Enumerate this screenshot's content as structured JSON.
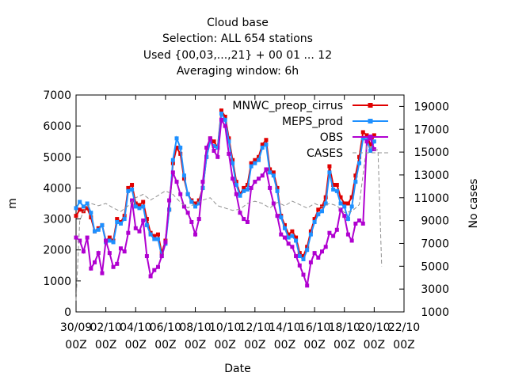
{
  "chart_data": {
    "type": "line",
    "title_lines": [
      "Cloud base",
      "Selection: ALL    654 stations",
      "Used {00,03,...,21} + 00 01 ... 12",
      "Averaging window:  6h"
    ],
    "xlabel": "Date",
    "ylabel": "m",
    "y2label": "No cases",
    "xlim": [
      0,
      22
    ],
    "ylim": [
      0,
      7000
    ],
    "y2lim": [
      1000,
      20000
    ],
    "x_ticks": [
      0,
      2,
      4,
      6,
      8,
      10,
      12,
      14,
      16,
      18,
      20,
      22
    ],
    "x_tick_labels": [
      [
        "30/09",
        "00Z"
      ],
      [
        "02/10",
        "00Z"
      ],
      [
        "04/10",
        "00Z"
      ],
      [
        "06/10",
        "00Z"
      ],
      [
        "08/10",
        "00Z"
      ],
      [
        "10/10",
        "00Z"
      ],
      [
        "12/10",
        "00Z"
      ],
      [
        "14/10",
        "00Z"
      ],
      [
        "16/10",
        "00Z"
      ],
      [
        "18/10",
        "00Z"
      ],
      [
        "20/10",
        "00Z"
      ],
      [
        "22/10",
        "00Z"
      ]
    ],
    "y_ticks": [
      0,
      1000,
      2000,
      3000,
      4000,
      5000,
      6000,
      7000
    ],
    "y2_ticks": [
      1000,
      3000,
      5000,
      7000,
      9000,
      11000,
      13000,
      15000,
      17000,
      19000
    ],
    "legend_position": "top-right",
    "series": [
      {
        "name": "MNWC_preop_cirrus",
        "color": "#e00000",
        "marker": "square",
        "axis": "left",
        "x": [
          0,
          0.25,
          0.5,
          0.75,
          1,
          1.25,
          1.5,
          1.75,
          2,
          2.25,
          2.5,
          2.75,
          3,
          3.25,
          3.5,
          3.75,
          4,
          4.25,
          4.5,
          4.75,
          5,
          5.25,
          5.5,
          5.75,
          6,
          6.25,
          6.5,
          6.75,
          7,
          7.25,
          7.5,
          7.75,
          8,
          8.25,
          8.5,
          8.75,
          9,
          9.25,
          9.5,
          9.75,
          10,
          10.25,
          10.5,
          10.75,
          11,
          11.25,
          11.5,
          11.75,
          12,
          12.25,
          12.5,
          12.75,
          13,
          13.25,
          13.5,
          13.75,
          14,
          14.25,
          14.5,
          14.75,
          15,
          15.25,
          15.5,
          15.75,
          16,
          16.25,
          16.5,
          16.75,
          17,
          17.25,
          17.5,
          17.75,
          18,
          18.25,
          18.5,
          18.75,
          19,
          19.25,
          19.5,
          19.75,
          20
        ],
        "values": [
          3100,
          3300,
          3250,
          3350,
          3050,
          2600,
          2700,
          2800,
          2300,
          2400,
          2300,
          3000,
          2900,
          3100,
          4000,
          4100,
          3500,
          3450,
          3550,
          3000,
          2550,
          2450,
          2500,
          1900,
          2300,
          3300,
          4800,
          5300,
          5100,
          4300,
          3800,
          3600,
          3500,
          3600,
          4000,
          5000,
          5600,
          5500,
          5300,
          6500,
          6300,
          5600,
          4900,
          4200,
          3800,
          4000,
          4100,
          4800,
          4900,
          5000,
          5400,
          5550,
          4600,
          4500,
          4000,
          3100,
          2800,
          2500,
          2600,
          2400,
          1900,
          1800,
          2100,
          2600,
          3000,
          3300,
          3400,
          3700,
          4700,
          4100,
          4100,
          3700,
          3500,
          3500,
          3700,
          4400,
          5000,
          5800,
          5700,
          5400,
          5700
        ]
      },
      {
        "name": "MEPS_prod",
        "color": "#1e90ff",
        "marker": "square",
        "axis": "left",
        "x": [
          0,
          0.25,
          0.5,
          0.75,
          1,
          1.25,
          1.5,
          1.75,
          2,
          2.25,
          2.5,
          2.75,
          3,
          3.25,
          3.5,
          3.75,
          4,
          4.25,
          4.5,
          4.75,
          5,
          5.25,
          5.5,
          5.75,
          6,
          6.25,
          6.5,
          6.75,
          7,
          7.25,
          7.5,
          7.75,
          8,
          8.25,
          8.5,
          8.75,
          9,
          9.25,
          9.5,
          9.75,
          10,
          10.25,
          10.5,
          10.75,
          11,
          11.25,
          11.5,
          11.75,
          12,
          12.25,
          12.5,
          12.75,
          13,
          13.25,
          13.5,
          13.75,
          14,
          14.25,
          14.5,
          14.75,
          15,
          15.25,
          15.5,
          15.75,
          16,
          16.25,
          16.5,
          16.75,
          17,
          17.25,
          17.5,
          17.75,
          18,
          18.25,
          18.5,
          18.75,
          19,
          19.25,
          19.5,
          19.75,
          20
        ],
        "values": [
          3350,
          3550,
          3400,
          3500,
          3200,
          2600,
          2650,
          2800,
          2250,
          2300,
          2250,
          2900,
          2850,
          3000,
          3900,
          3950,
          3400,
          3350,
          3400,
          2800,
          2500,
          2350,
          2350,
          1800,
          2200,
          3300,
          4900,
          5600,
          5300,
          4400,
          3800,
          3550,
          3400,
          3500,
          4000,
          5000,
          5500,
          5350,
          5300,
          6400,
          6200,
          5500,
          4800,
          4100,
          3750,
          3900,
          3950,
          4700,
          4800,
          4900,
          5300,
          5400,
          4500,
          4400,
          3900,
          3050,
          2700,
          2400,
          2450,
          2300,
          1800,
          1700,
          2000,
          2500,
          2900,
          3150,
          3250,
          3500,
          4500,
          3950,
          3900,
          3500,
          3400,
          3000,
          3400,
          4200,
          4800,
          5600,
          5550,
          5200,
          5500
        ]
      },
      {
        "name": "OBS",
        "color": "#b000d0",
        "marker": "square",
        "axis": "left",
        "x": [
          0,
          0.25,
          0.5,
          0.75,
          1,
          1.25,
          1.5,
          1.75,
          2,
          2.25,
          2.5,
          2.75,
          3,
          3.25,
          3.5,
          3.75,
          4,
          4.25,
          4.5,
          4.75,
          5,
          5.25,
          5.5,
          5.75,
          6,
          6.25,
          6.5,
          6.75,
          7,
          7.25,
          7.5,
          7.75,
          8,
          8.25,
          8.5,
          8.75,
          9,
          9.25,
          9.5,
          9.75,
          10,
          10.25,
          10.5,
          10.75,
          11,
          11.25,
          11.5,
          11.75,
          12,
          12.25,
          12.5,
          12.75,
          13,
          13.25,
          13.5,
          13.75,
          14,
          14.25,
          14.5,
          14.75,
          15,
          15.25,
          15.5,
          15.75,
          16,
          16.25,
          16.5,
          16.75,
          17,
          17.25,
          17.5,
          17.75,
          18,
          18.25,
          18.5,
          18.75,
          19,
          19.25,
          19.5,
          19.75,
          20
        ],
        "values": [
          2400,
          2300,
          1950,
          2400,
          1400,
          1600,
          1900,
          1250,
          2300,
          1900,
          1450,
          1550,
          2050,
          1950,
          2550,
          3600,
          2700,
          2600,
          2950,
          1800,
          1150,
          1350,
          1450,
          1800,
          2250,
          3600,
          4500,
          4200,
          3800,
          3400,
          3200,
          2900,
          2500,
          3000,
          4200,
          5300,
          5600,
          5200,
          5000,
          6200,
          6000,
          5100,
          4300,
          3800,
          3200,
          3000,
          2900,
          4000,
          4200,
          4300,
          4400,
          4600,
          4000,
          3500,
          3100,
          2500,
          2400,
          2200,
          2100,
          1800,
          1500,
          1200,
          850,
          1600,
          1900,
          1750,
          1950,
          2100,
          2550,
          2450,
          2650,
          3300,
          3100,
          2500,
          2300,
          2850,
          2950,
          2850,
          5500,
          5600,
          5250
        ]
      },
      {
        "name": "CASES",
        "color": "#909090",
        "dash": true,
        "axis": "right",
        "x": [
          0,
          0.25,
          0.5,
          0.75,
          1,
          1.5,
          2,
          2.5,
          3,
          3.5,
          4,
          4.5,
          5,
          5.5,
          6,
          6.5,
          7,
          7.5,
          8,
          8.5,
          9,
          9.5,
          10,
          10.5,
          11,
          11.5,
          12,
          12.5,
          13,
          13.5,
          14,
          14.5,
          15,
          15.5,
          16,
          16.5,
          17,
          17.5,
          18,
          18.5,
          19,
          19.5,
          20,
          20.25,
          20.5
        ],
        "values": [
          2000,
          9000,
          9800,
          10200,
          10500,
          10300,
          10500,
          10100,
          9800,
          10300,
          11000,
          11300,
          10800,
          11200,
          11600,
          11300,
          10600,
          10100,
          10500,
          10800,
          11000,
          10300,
          10100,
          9900,
          10000,
          10500,
          10700,
          10500,
          10100,
          10600,
          10300,
          10700,
          10400,
          10100,
          10500,
          10200,
          10500,
          10300,
          9700,
          9800,
          10400,
          15600,
          15200,
          15200,
          5000
        ]
      }
    ]
  }
}
